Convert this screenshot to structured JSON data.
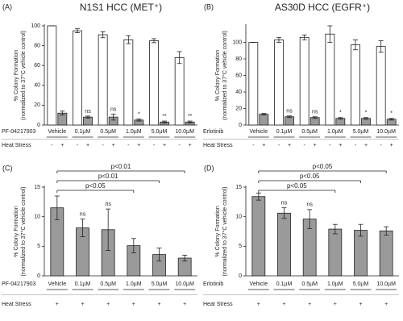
{
  "chart_data": [
    {
      "type": "bar",
      "panel": "(A)",
      "title": "N1S1 HCC (MET⁺)",
      "ylabel": [
        "% Colony Formation",
        "(normalized to 37°C vehicle control)"
      ],
      "treatment_label": "PF-04217903",
      "condition_label": "Heat Stress",
      "categories": [
        "Vehicle",
        "0.1µM",
        "0.5µM",
        "1.0µM",
        "5.0µM",
        "10.0µM"
      ],
      "ylim": [
        0,
        100
      ],
      "yticks": [
        0,
        20,
        40,
        60,
        80,
        100
      ],
      "series": [
        {
          "heat_stress": "-",
          "color": "#ffffff",
          "values": [
            100,
            95,
            91,
            86,
            85,
            68
          ],
          "errors": [
            0,
            2,
            3,
            4,
            2,
            6
          ],
          "annotations": [
            null,
            null,
            null,
            null,
            null,
            null
          ]
        },
        {
          "heat_stress": "+",
          "color": "#9a9a9a",
          "values": [
            12,
            8,
            8,
            5,
            3,
            3
          ],
          "errors": [
            2,
            1,
            3,
            1,
            1,
            1
          ],
          "annotations": [
            null,
            "ns",
            "ns",
            "*",
            "**",
            "**"
          ]
        }
      ]
    },
    {
      "type": "bar",
      "panel": "(B)",
      "title": "AS30D HCC (EGFR⁺)",
      "ylabel": [
        "% Colony Formation",
        "(normalized to 37°C vehicle control)"
      ],
      "treatment_label": "Erlotinib",
      "condition_label": "Heat Stress",
      "categories": [
        "Vehicle",
        "0.1µM",
        "0.5µM",
        "1.0µM",
        "5.0µM",
        "10.0µM"
      ],
      "ylim": [
        0,
        120
      ],
      "yticks": [
        0,
        20,
        40,
        60,
        80,
        100
      ],
      "series": [
        {
          "heat_stress": "-",
          "color": "#ffffff",
          "values": [
            100,
            103,
            106,
            110,
            97,
            95
          ],
          "errors": [
            0,
            3,
            3,
            10,
            6,
            7
          ],
          "annotations": [
            null,
            null,
            null,
            null,
            null,
            null
          ]
        },
        {
          "heat_stress": "+",
          "color": "#9a9a9a",
          "values": [
            13,
            10,
            9,
            8,
            8,
            7
          ],
          "errors": [
            1,
            1,
            1,
            1,
            1,
            1
          ],
          "annotations": [
            null,
            "ns",
            "ns",
            "*",
            "*",
            "*"
          ]
        }
      ]
    },
    {
      "type": "bar",
      "panel": "(C)",
      "ylabel": [
        "% Colony Formation",
        "(normalized to 37°C vehicle control)"
      ],
      "treatment_label": "PF-04217903",
      "condition_label": "Heat Stress",
      "categories": [
        "Vehicle",
        "0.1µM",
        "0.5µM",
        "1.0µM",
        "5.0µM",
        "10.0µM"
      ],
      "ylim": [
        0,
        15
      ],
      "yticks": [
        0,
        5,
        10,
        15
      ],
      "series": [
        {
          "heat_stress": "+",
          "color": "#9a9a9a",
          "values": [
            11.5,
            8.1,
            7.8,
            5.1,
            3.6,
            3.0
          ],
          "errors": [
            2.0,
            1.5,
            3.5,
            1.2,
            1.1,
            0.5
          ],
          "annotations": [
            null,
            "ns",
            "ns",
            null,
            null,
            null
          ]
        }
      ],
      "brackets": [
        {
          "from": "Vehicle",
          "to": "1.0µM",
          "label": "p<0.05"
        },
        {
          "from": "Vehicle",
          "to": "5.0µM",
          "label": "p<0.01"
        },
        {
          "from": "Vehicle",
          "to": "10.0µM",
          "label": "p<0.01"
        }
      ]
    },
    {
      "type": "bar",
      "panel": "(D)",
      "ylabel": [
        "% Colony Formation",
        "(normalized to 37°C vehicle control)"
      ],
      "treatment_label": "Erlotinib",
      "condition_label": "Heat Stress",
      "categories": [
        "Vehicle",
        "0.1µM",
        "0.5µM",
        "1.0µM",
        "5.0µM",
        "10.0µM"
      ],
      "ylim": [
        0,
        15
      ],
      "yticks": [
        0,
        5,
        10,
        15
      ],
      "series": [
        {
          "heat_stress": "+",
          "color": "#9a9a9a",
          "values": [
            13.4,
            10.6,
            9.6,
            7.9,
            7.7,
            7.6
          ],
          "errors": [
            0.6,
            0.9,
            1.6,
            0.8,
            1.0,
            0.7
          ],
          "annotations": [
            null,
            "ns",
            "ns",
            null,
            null,
            null
          ]
        }
      ],
      "brackets": [
        {
          "from": "Vehicle",
          "to": "1.0µM",
          "label": "p<0.05"
        },
        {
          "from": "Vehicle",
          "to": "5.0µM",
          "label": "p<0.05"
        },
        {
          "from": "Vehicle",
          "to": "10.0µM",
          "label": "p<0.05"
        }
      ]
    }
  ]
}
